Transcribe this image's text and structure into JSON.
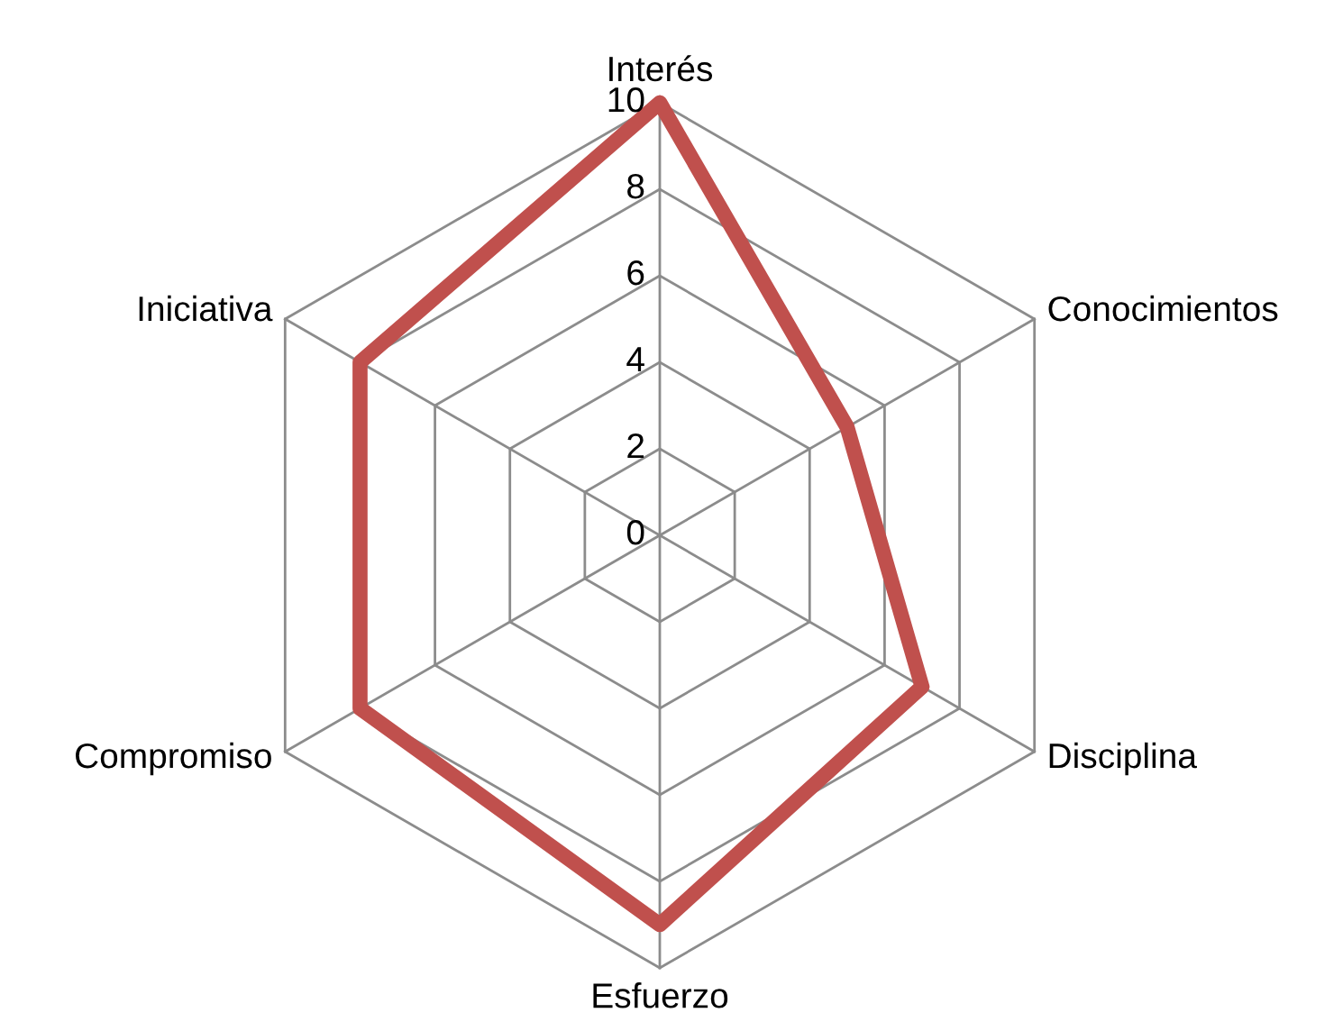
{
  "chart_data": {
    "type": "radar",
    "categories": [
      "Interés",
      "Conocimientos",
      "Disciplina",
      "Esfuerzo",
      "Compromiso",
      "Iniciativa"
    ],
    "series": [
      {
        "color": "#c0504d",
        "values": [
          10,
          5,
          7,
          9,
          8,
          8
        ]
      }
    ],
    "ylim": [
      0,
      10
    ],
    "yticks": [
      0,
      2,
      4,
      6,
      8,
      10
    ],
    "grid": true
  }
}
